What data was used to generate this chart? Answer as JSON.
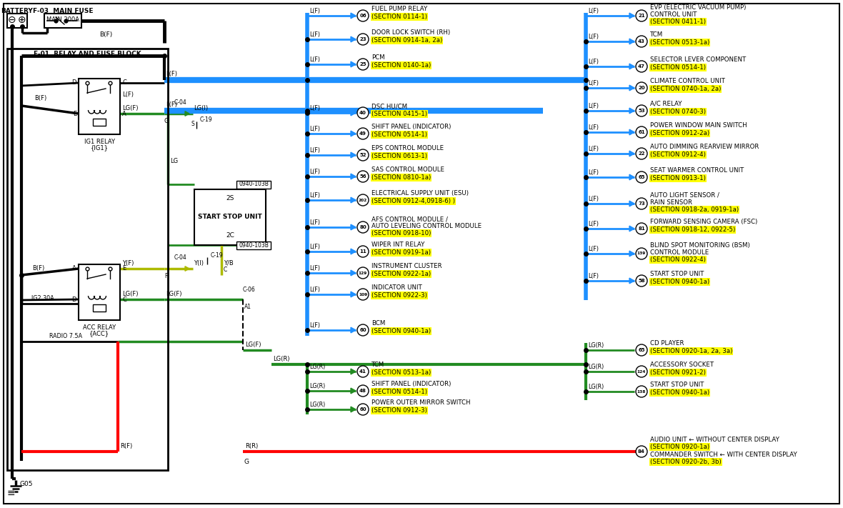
{
  "bg_color": "#ffffff",
  "fig_width": 11.8,
  "fig_height": 7.11,
  "wire_colors": {
    "blue": "#1E90FF",
    "green": "#228B22",
    "red": "#FF0000",
    "black": "#000000",
    "yellow_green": "#ADBA00"
  },
  "highlight_color": "#FFFF00",
  "blue_left_branches": [
    {
      "connector": "06",
      "name": "FUEL PUMP RELAY",
      "section": "(SECTION 0114-1)",
      "multiline": false
    },
    {
      "connector": "23",
      "name": "DOOR LOCK SWITCH (RH)",
      "section": "(SECTION 0914-1a, 2a)",
      "multiline": false
    },
    {
      "connector": "25",
      "name": "PCM",
      "section": "(SECTION 0140-1a)",
      "multiline": false
    },
    {
      "connector": "40",
      "name": "DSC HU/CM",
      "section": "(SECTION 0415-1)",
      "multiline": false
    },
    {
      "connector": "49",
      "name": "SHIFT PANEL (INDICATOR)",
      "section": "(SECTION 0514-1)",
      "multiline": false
    },
    {
      "connector": "52",
      "name": "EPS CONTROL MODULE",
      "section": "(SECTION 0613-1)",
      "multiline": false
    },
    {
      "connector": "56",
      "name": "SAS CONTROL MODULE",
      "section": "(SECTION 0810-1a)",
      "multiline": false
    },
    {
      "connector": "202",
      "name": "ELECTRICAL SUPPLY UNIT (ESU)",
      "section": "(SECTION 0912-4,0918-6) )",
      "multiline": false
    },
    {
      "connector": "80",
      "name1": "AFS CONTROL MODULE /",
      "name2": "AUTO LEVELING CONTROL MODULE",
      "section": "(SECTION 0918-10)",
      "multiline": true
    },
    {
      "connector": "11",
      "name": "WIPER INT RELAY",
      "section": "(SECTION 0919-1a)",
      "multiline": false
    },
    {
      "connector": "129",
      "name": "INSTRUMENT CLUSTER",
      "section": "(SECTION 0922-1a)",
      "multiline": false
    },
    {
      "connector": "109",
      "name": "INDICATOR UNIT",
      "section": "(SECTION 0922-3)",
      "multiline": false
    },
    {
      "connector": "60",
      "name": "BCM",
      "section": "(SECTION 0940-1a)",
      "multiline": false
    }
  ],
  "blue_right_branches": [
    {
      "connector": "21",
      "name1": "EVP (ELECTRIC VACUUM PUMP)",
      "name2": "CONTROL UNIT",
      "section": "(SECTION 0411-1)",
      "multiline": true
    },
    {
      "connector": "43",
      "name": "TCM",
      "section": "(SECTION 0513-1a)",
      "multiline": false
    },
    {
      "connector": "47",
      "name": "SELECTOR LEVER COMPONENT",
      "section": "(SECTION 0514-1)",
      "multiline": false
    },
    {
      "connector": "20",
      "name": "CLIMATE CONTROL UNIT",
      "section": "(SECTION 0740-1a, 2a)",
      "multiline": false
    },
    {
      "connector": "53",
      "name": "A/C RELAY",
      "section": "(SECTION 0740-3)",
      "multiline": false
    },
    {
      "connector": "61",
      "name": "POWER WINDOW MAIN SWITCH",
      "section": "(SECTION 0912-2a)",
      "multiline": false
    },
    {
      "connector": "22",
      "name": "AUTO DIMMING REARVIEW MIRROR",
      "section": "(SECTION 0912-4)",
      "multiline": false
    },
    {
      "connector": "65",
      "name": "SEAT WARMER CONTROL UNIT",
      "section": "(SECTION 0913-1)",
      "multiline": false
    },
    {
      "connector": "73",
      "name1": "AUTO LIGHT SENSOR /",
      "name2": "RAIN SENSOR",
      "section": "(SECTION 0918-2a, 0919-1a)",
      "multiline": true
    },
    {
      "connector": "81",
      "name": "FORWARD SENSING CAMERA (FSC)",
      "section": "(SECTION 0918-12, 0922-5)",
      "multiline": false
    },
    {
      "connector": "139",
      "name1": "BLIND SPOT MONITORING (BSM)",
      "name2": "CONTROL MODULE",
      "section": "(SECTION 0922-4)",
      "multiline": true
    },
    {
      "connector": "58",
      "name": "START STOP UNIT",
      "section": "(SECTION 0940-1a)",
      "multiline": false
    }
  ],
  "green_left_branches": [
    {
      "connector": "41",
      "name": "TCM",
      "section": "(SECTION 0513-1a)"
    },
    {
      "connector": "48",
      "name": "SHIFT PANEL (INDICATOR)",
      "section": "(SECTION 0514-1)"
    },
    {
      "connector": "60",
      "name": "POWER OUTER MIRROR SWITCH",
      "section": "(SECTION 0912-3)"
    }
  ],
  "green_right_branches": [
    {
      "connector": "65",
      "name": "CD PLAYER",
      "section": "(SECTION 0920-1a, 2a, 3a)"
    },
    {
      "connector": "124",
      "name": "ACCESSORY SOCKET",
      "section": "(SECTION 0921-2)"
    },
    {
      "connector": "138",
      "name": "START STOP UNIT",
      "section": "(SECTION 0940-1a)"
    }
  ]
}
